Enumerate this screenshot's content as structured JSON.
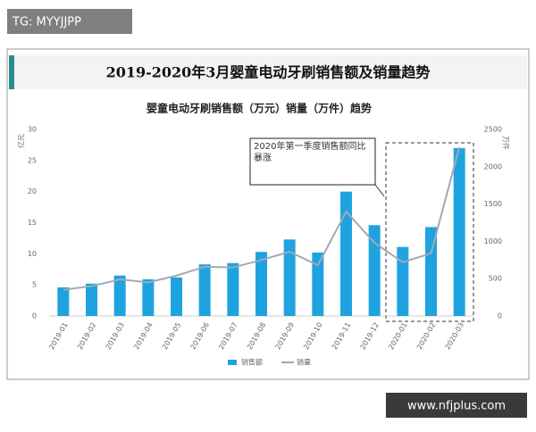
{
  "watermarks": {
    "top": "TG: MYYJJPP",
    "bottom": "www.nfjplus.com"
  },
  "chart_data": {
    "type": "bar",
    "title": "2019-2020年3月婴童电动牙刷销售额及销量趋势",
    "subtitle": "婴童电动牙刷销售额（万元）销量（万件）趋势",
    "y_label": "亿元",
    "y2_label": "万件",
    "annotation": "2020年第一季度销售额同比暴涨",
    "categories": [
      "2019-01",
      "2019-02",
      "2019-03",
      "2019-04",
      "2019-05",
      "2019-06",
      "2019-07",
      "2019-08",
      "2019-09",
      "2019-10",
      "2019-11",
      "2019-12",
      "2020-01",
      "2020-02",
      "2020-03"
    ],
    "series": [
      {
        "name": "销售额",
        "type": "bar",
        "color": "#1fa3e0",
        "values": [
          4.6,
          5.2,
          6.5,
          5.9,
          6.2,
          8.3,
          8.5,
          10.3,
          12.3,
          10.2,
          20,
          14.6,
          11.1,
          14.3,
          27
        ]
      },
      {
        "name": "销量",
        "type": "line",
        "axis": "y2",
        "color": "#a0aab4",
        "values": [
          350,
          400,
          490,
          450,
          540,
          660,
          650,
          750,
          860,
          680,
          1400,
          980,
          720,
          840,
          2260
        ]
      }
    ],
    "ylim": [
      0,
      30
    ],
    "yticks": [
      0,
      5,
      10,
      15,
      20,
      25,
      30
    ],
    "y2lim": [
      0,
      2500
    ],
    "y2ticks": [
      0,
      500,
      1000,
      1500,
      2000,
      2500
    ],
    "legend": "bottom"
  }
}
